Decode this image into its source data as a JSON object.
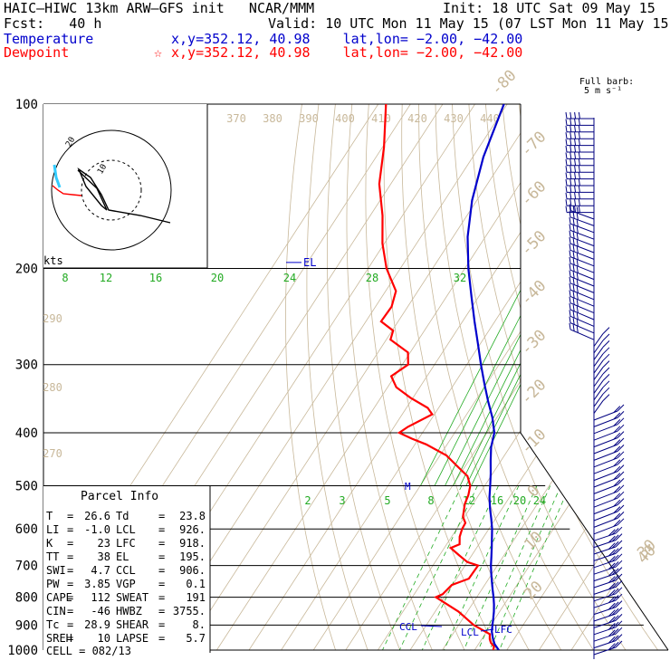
{
  "header": {
    "model_line": "HAIC–HIWC 13km ARW–GFS init   NCAR/MMM",
    "fcst_line": "Fcst:   40 h",
    "init_line": "Init: 18 UTC Sat 09 May 15",
    "valid_line": "Valid: 10 UTC Mon 11 May 15 (07 LST Mon 11 May 15)",
    "temp_label": "Temperature",
    "temp_loc": "x,y=352.12, 40.98    lat,lon= −2.00, −42.00",
    "dew_label": "Dewpoint",
    "dew_loc": "x,y=352.12, 40.98    lat,lon= −2.00, −42.00",
    "star": "☆",
    "barb_note_1": "Full barb:",
    "barb_note_2": "5 m s⁻¹"
  },
  "colors": {
    "temperature": "#0000cc",
    "dewpoint": "#ff0000",
    "mixing_ratio": "#22aa22",
    "dry_adiabat": "#c8b89a",
    "isotherm": "#c8b89a",
    "isobar": "#000000",
    "barb": "#000080",
    "hodo_trace": "#000000",
    "hodo_red": "#ff0000",
    "hodo_cyan": "#33ccff"
  },
  "labels": {
    "kts": "kts",
    "el": "EL",
    "m": "M",
    "ccl": "CCL",
    "lcl": "LCL",
    "lfc": "LFC",
    "hodo_mark_a": "20",
    "hodo_mark_b": "10"
  },
  "parcel": {
    "title": "Parcel Info",
    "rows": [
      [
        "T",
        "26.6",
        "Td",
        "23.8"
      ],
      [
        "LI",
        "-1.0",
        "LCL",
        "926."
      ],
      [
        "K",
        "23",
        "LFC",
        "918."
      ],
      [
        "TT",
        "38",
        "EL",
        "195."
      ],
      [
        "SWI",
        "4.7",
        "CCL",
        "906."
      ],
      [
        "PW",
        "3.85",
        "VGP",
        "0.1"
      ],
      [
        "CAPE",
        "112",
        "SWEAT",
        "191"
      ],
      [
        "CIN",
        "-46",
        "HWBZ",
        "3755."
      ],
      [
        "Tc",
        "28.9",
        "SHEAR",
        "8."
      ],
      [
        "SREH",
        "10",
        "LAPSE",
        "5.7"
      ]
    ],
    "cell": "CELL = 082/13"
  },
  "chart_data": {
    "type": "line",
    "chart": "skew-T log-p sounding",
    "pressure_ticks": [
      "100",
      "200",
      "300",
      "400",
      "500",
      "600",
      "700",
      "800",
      "900",
      "1000"
    ],
    "pressure_levels": [
      100,
      200,
      300,
      400,
      500,
      600,
      700,
      800,
      900,
      1000
    ],
    "isotherm_labels": [
      "-80",
      "-70",
      "-60",
      "-50",
      "-40",
      "-30",
      "-20",
      "-10",
      "0",
      "10",
      "20",
      "30",
      "40"
    ],
    "isotherm_values": [
      -80,
      -70,
      -60,
      -50,
      -40,
      -30,
      -20,
      -10,
      0,
      10,
      20,
      30,
      40
    ],
    "theta_labels": [
      "370",
      "380",
      "390",
      "400",
      "410",
      "420",
      "430",
      "440"
    ],
    "theta_labels_left": [
      "290",
      "280",
      "270"
    ],
    "mixing_ratio_labels_upper": [
      "8",
      "12",
      "16",
      "20",
      "24",
      "28",
      "32"
    ],
    "mixing_ratio_labels_lower": [
      "2",
      "3",
      "5",
      "8",
      "12",
      "16",
      "20",
      "24"
    ],
    "series": [
      {
        "name": "Temperature",
        "p": [
          1000,
          975,
          950,
          925,
          900,
          875,
          850,
          825,
          800,
          775,
          750,
          725,
          700,
          675,
          650,
          625,
          600,
          575,
          550,
          525,
          500,
          475,
          450,
          425,
          400,
          375,
          350,
          325,
          300,
          275,
          250,
          225,
          200,
          175,
          150,
          125,
          100
        ],
        "t": [
          27.5,
          25.0,
          23.2,
          21.6,
          20.5,
          19.4,
          18.2,
          16.8,
          15.2,
          13.4,
          11.6,
          9.8,
          8.0,
          6.4,
          4.7,
          2.9,
          1.0,
          -1.3,
          -3.8,
          -6.2,
          -8.3,
          -10.6,
          -13.2,
          -15.8,
          -17.7,
          -21.4,
          -26.0,
          -30.7,
          -35.6,
          -40.7,
          -46.3,
          -52.3,
          -58.9,
          -65.5,
          -71.5,
          -76.7,
          -81.0
        ]
      },
      {
        "name": "Dewpoint",
        "p": [
          1000,
          985,
          970,
          955,
          945,
          935,
          900,
          850,
          800,
          790,
          760,
          740,
          700,
          690,
          670,
          650,
          640,
          620,
          600,
          585,
          570,
          540,
          520,
          500,
          480,
          460,
          440,
          420,
          410,
          400,
          390,
          370,
          360,
          345,
          330,
          315,
          300,
          285,
          270,
          260,
          250,
          235,
          220,
          200,
          180,
          160,
          140,
          120,
          100
        ],
        "t": [
          25.8,
          25.3,
          23.6,
          22.5,
          22.0,
          21.5,
          14.7,
          7.2,
          -2.7,
          -1.2,
          -0.2,
          3.8,
          4.0,
          0.0,
          -4.0,
          -8.0,
          -6.0,
          -7.5,
          -8.3,
          -8.5,
          -10.5,
          -12.5,
          -13.2,
          -14.5,
          -17.3,
          -22.6,
          -28.0,
          -36.5,
          -42.1,
          -47.2,
          -45.7,
          -40.7,
          -43.4,
          -50.8,
          -57.3,
          -61.1,
          -58.2,
          -60.7,
          -68.7,
          -69.7,
          -75.3,
          -75.0,
          -76.8,
          -84.3,
          -90.6,
          -96.2,
          -103.6,
          -109.5,
          -117.6
        ]
      }
    ]
  }
}
